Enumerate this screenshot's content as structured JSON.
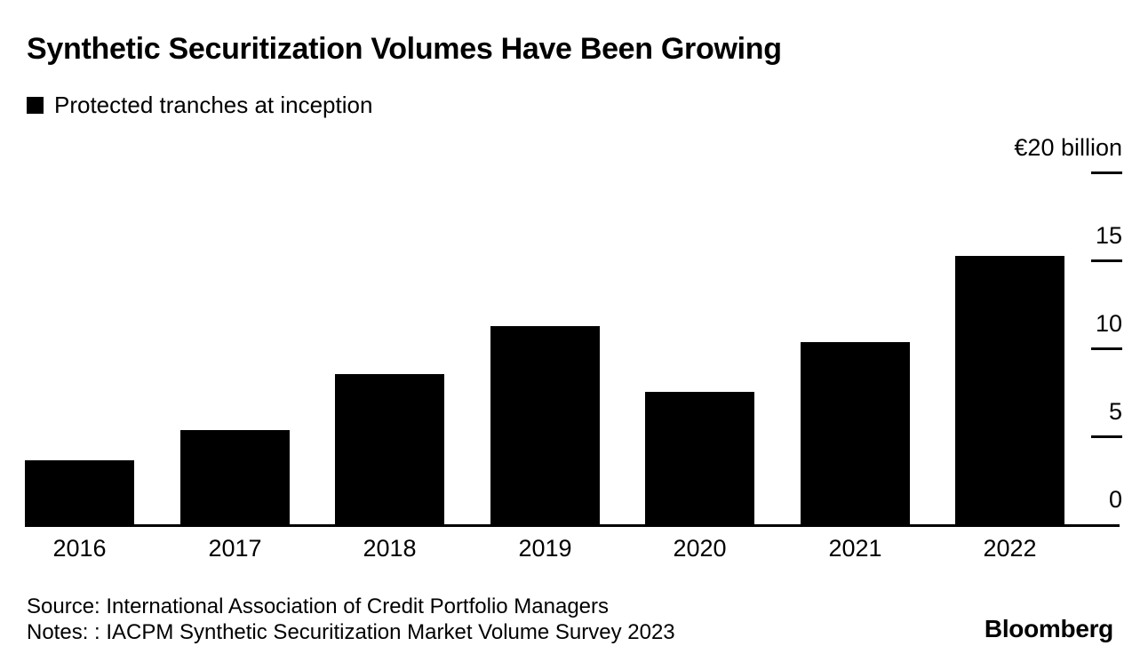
{
  "page": {
    "background_color": "#ffffff",
    "text_color": "#000000"
  },
  "chart_data": {
    "type": "bar",
    "title": "Synthetic Securitization Volumes Have Been Growing",
    "legend": [
      "Protected tranches at inception"
    ],
    "legend_position": "top-left",
    "categories": [
      "2016",
      "2017",
      "2018",
      "2019",
      "2020",
      "2021",
      "2022"
    ],
    "values": [
      3.7,
      5.4,
      8.6,
      11.3,
      7.6,
      10.4,
      15.3
    ],
    "unit": "€ billion",
    "ylim": [
      0,
      20
    ],
    "yticks": [
      {
        "value": 0,
        "label": "0",
        "tick_mark": false
      },
      {
        "value": 5,
        "label": "5",
        "tick_mark": true
      },
      {
        "value": 10,
        "label": "10",
        "tick_mark": true
      },
      {
        "value": 15,
        "label": "15",
        "tick_mark": true
      },
      {
        "value": 20,
        "label": "€20 billion",
        "tick_mark": true
      }
    ],
    "axis_side": "right",
    "grid": false,
    "bar_color": "#000000"
  },
  "footer": {
    "source": "Source: International Association of Credit Portfolio Managers",
    "notes": "Notes: : IACPM Synthetic Securitization Market Volume Survey 2023",
    "brand": "Bloomberg"
  }
}
